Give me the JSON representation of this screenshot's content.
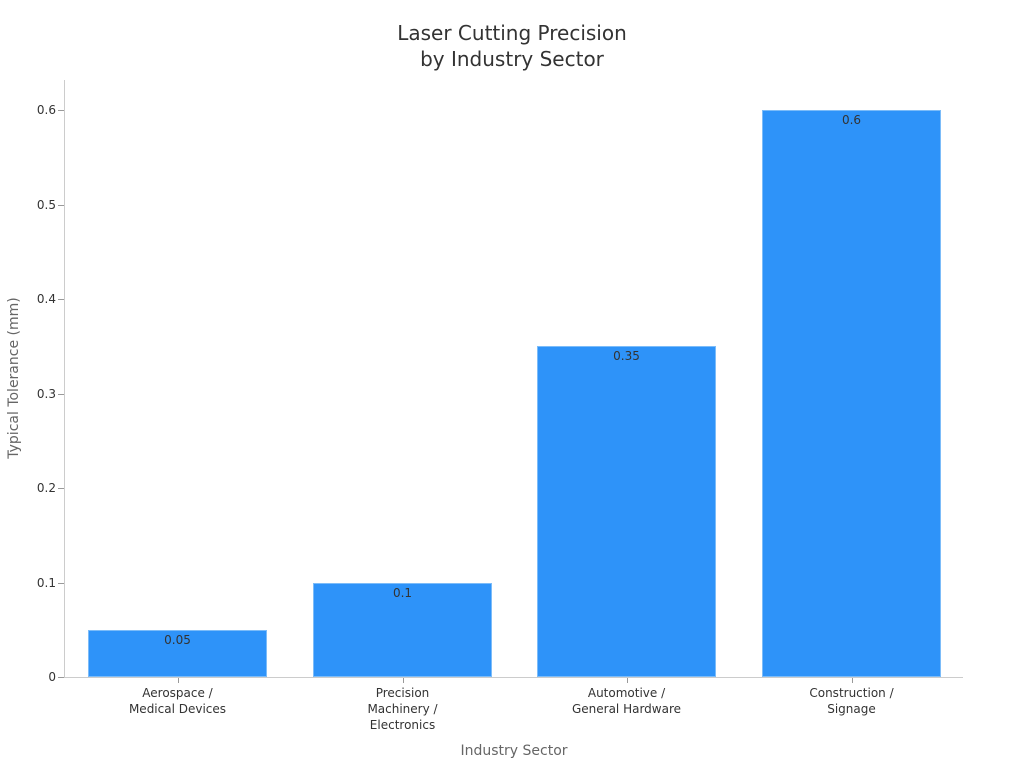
{
  "chart_data": {
    "type": "bar",
    "title": "Laser Cutting Precision\nby Industry Sector",
    "title_lines": [
      "Laser Cutting Precision",
      "by Industry Sector"
    ],
    "xlabel": "Industry Sector",
    "ylabel": "Typical Tolerance (mm)",
    "categories": [
      "Aerospace / Medical Devices",
      "Precision Machinery / Electronics",
      "Automotive / General Hardware",
      "Construction / Signage"
    ],
    "category_lines": [
      "Aerospace /\nMedical Devices",
      "Precision\nMachinery /\nElectronics",
      "Automotive /\nGeneral Hardware",
      "Construction /\nSignage"
    ],
    "values": [
      0.05,
      0.1,
      0.35,
      0.6
    ],
    "data_labels": [
      "0.05",
      "0.1",
      "0.35",
      "0.6"
    ],
    "yticks": [
      "0",
      "0.1",
      "0.2",
      "0.3",
      "0.4",
      "0.5",
      "0.6"
    ],
    "ylim": [
      0,
      0.63
    ],
    "grid": false,
    "legend": null,
    "bar_color": "#2e93f9"
  }
}
